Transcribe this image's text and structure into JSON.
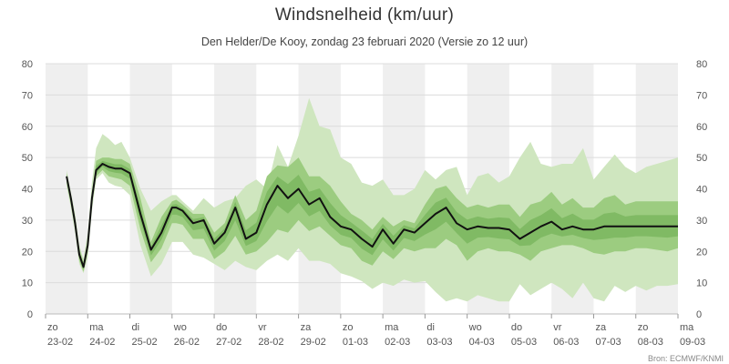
{
  "chart_data": {
    "type": "area",
    "title": "Windsnelheid (km/uur)",
    "subtitle": "Den Helder/De Kooy, zondag 23 februari 2020 (Versie zo 12 uur)",
    "source": "Bron: ECMWF/KNMI",
    "ylim": [
      0,
      80
    ],
    "yticks": [
      0,
      10,
      20,
      30,
      40,
      50,
      60,
      70,
      80
    ],
    "xlim": [
      0,
      15
    ],
    "grid": true,
    "day_labels": [
      {
        "day": "zo",
        "date": "23-02"
      },
      {
        "day": "ma",
        "date": "24-02"
      },
      {
        "day": "di",
        "date": "25-02"
      },
      {
        "day": "wo",
        "date": "26-02"
      },
      {
        "day": "do",
        "date": "27-02"
      },
      {
        "day": "vr",
        "date": "28-02"
      },
      {
        "day": "za",
        "date": "29-02"
      },
      {
        "day": "zo",
        "date": "01-03"
      },
      {
        "day": "ma",
        "date": "02-03"
      },
      {
        "day": "di",
        "date": "03-03"
      },
      {
        "day": "wo",
        "date": "04-03"
      },
      {
        "day": "do",
        "date": "05-03"
      },
      {
        "day": "vr",
        "date": "06-03"
      },
      {
        "day": "za",
        "date": "07-03"
      },
      {
        "day": "zo",
        "date": "08-03"
      },
      {
        "day": "ma",
        "date": "09-03"
      }
    ],
    "colors": {
      "outer_band": "#cfe6bf",
      "inner_band": "#9ccc80",
      "core_band": "#6aab4d",
      "median": "#111111",
      "shade": "#efefef"
    },
    "x": [
      0.5,
      0.6,
      0.7,
      0.8,
      0.9,
      1.0,
      1.1,
      1.2,
      1.35,
      1.5,
      1.65,
      1.8,
      2.0,
      2.25,
      2.5,
      2.75,
      3.0,
      3.1,
      3.25,
      3.5,
      3.75,
      4.0,
      4.25,
      4.5,
      4.75,
      5.0,
      5.25,
      5.5,
      5.75,
      6.0,
      6.25,
      6.5,
      6.75,
      7.0,
      7.25,
      7.5,
      7.75,
      8.0,
      8.25,
      8.5,
      8.75,
      9.0,
      9.25,
      9.5,
      9.75,
      10.0,
      10.25,
      10.5,
      10.75,
      11.0,
      11.25,
      11.5,
      11.75,
      12.0,
      12.25,
      12.5,
      12.75,
      13.0,
      13.25,
      13.5,
      13.75,
      14.0,
      14.25,
      14.5,
      14.75,
      15.0
    ],
    "median": [
      44,
      37,
      29,
      19,
      15,
      22,
      37,
      46,
      48,
      47,
      46.5,
      46.5,
      45,
      32,
      20.5,
      26,
      34,
      34,
      33,
      29,
      30,
      22.5,
      26,
      34,
      24,
      26,
      35,
      41,
      37,
      40,
      35,
      37,
      31,
      28,
      27,
      24,
      21.5,
      27,
      22.5,
      27,
      26,
      29,
      32,
      34,
      29,
      27,
      28,
      27.5,
      27.5,
      27,
      24,
      26,
      28,
      29.5,
      27,
      28,
      27,
      27,
      28,
      28,
      28,
      28,
      28,
      28,
      28,
      28
    ],
    "inner_low": [
      42,
      35,
      27,
      17,
      13.5,
      20,
      35,
      44,
      46,
      44,
      43.5,
      43,
      41,
      27,
      16.5,
      21,
      29,
      29,
      28.5,
      24,
      24,
      17.5,
      20,
      25,
      19,
      20,
      23,
      27,
      26,
      30,
      26.5,
      28,
      25,
      22,
      21,
      17,
      15.5,
      20,
      17.5,
      21,
      20,
      21,
      21,
      24,
      22,
      17,
      20,
      21,
      20,
      20,
      19,
      17,
      20,
      21,
      22,
      22,
      21,
      19.5,
      19,
      20,
      20,
      21,
      21,
      20.5,
      20,
      21
    ],
    "inner_high": [
      45,
      38,
      31,
      21,
      16.5,
      24,
      39,
      49,
      50,
      50,
      49.5,
      49.5,
      48,
      37,
      23,
      31,
      36,
      36.5,
      35,
      32,
      32,
      26,
      29,
      38,
      30,
      33,
      44,
      47.5,
      47,
      50,
      44,
      44,
      41,
      36,
      32,
      30,
      27,
      31,
      28,
      30,
      29,
      35,
      40,
      41,
      37,
      34,
      35,
      34,
      35,
      35,
      31,
      35,
      36,
      39,
      35,
      37,
      34,
      34,
      37,
      38,
      35,
      36,
      36,
      36,
      36,
      36
    ],
    "outer_low": [
      41,
      34,
      26,
      16,
      13,
      18,
      33,
      43,
      45,
      42,
      41,
      40.5,
      38,
      22,
      12,
      16,
      23,
      23,
      23,
      19,
      18,
      16,
      14,
      17,
      15,
      14,
      17,
      19,
      17,
      21,
      17,
      17,
      16,
      13,
      12,
      10.5,
      8,
      10,
      9,
      11,
      10,
      10.5,
      7,
      4,
      5,
      4,
      6,
      5,
      4,
      4,
      9.5,
      6,
      8,
      10,
      8,
      5,
      10,
      5,
      4,
      9,
      7,
      9,
      7.5,
      9,
      9,
      9.5
    ],
    "outer_high": [
      46,
      39,
      32,
      22,
      17.5,
      26,
      42,
      53,
      57.5,
      56,
      54,
      55,
      50,
      40,
      33,
      36,
      38,
      38,
      36,
      33,
      37,
      34,
      36,
      37,
      41,
      43,
      40,
      54,
      47,
      57,
      69,
      60,
      59,
      50,
      48,
      42,
      41,
      43,
      38,
      38,
      40,
      46,
      43,
      46,
      47,
      38,
      44,
      45,
      42,
      44,
      50,
      55,
      48,
      47,
      48,
      48,
      53,
      43,
      47,
      51,
      47,
      45,
      47,
      48,
      49,
      50
    ]
  }
}
